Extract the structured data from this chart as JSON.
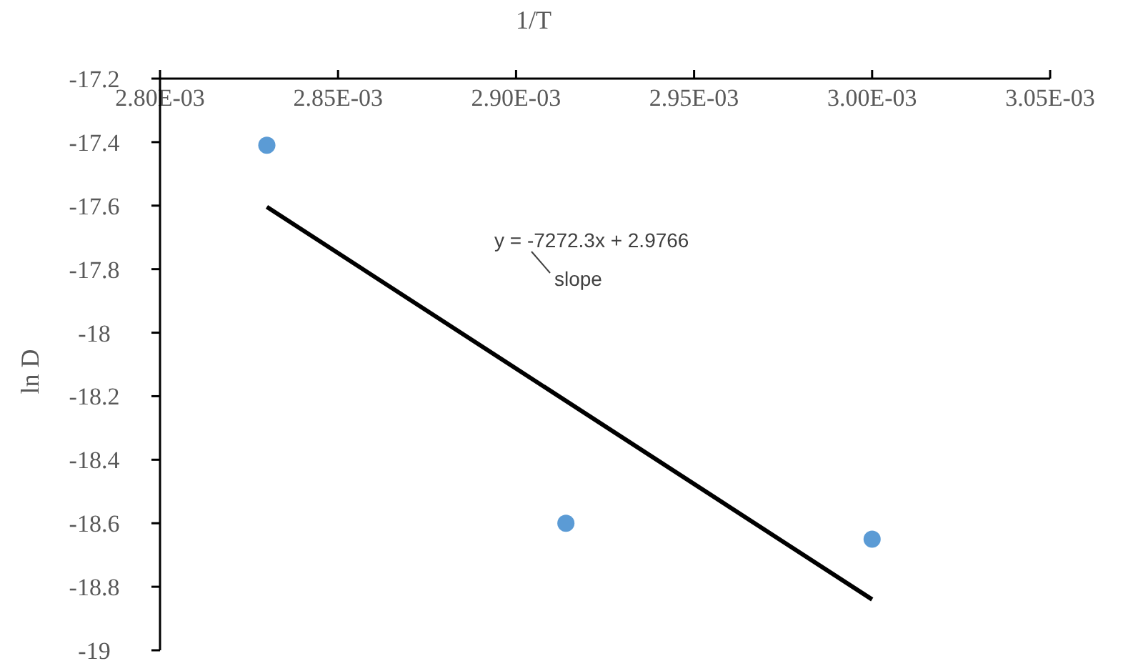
{
  "chart_data": {
    "type": "scatter",
    "xlabel": "1/T",
    "ylabel": "ln D",
    "xlim": [
      0.0028,
      0.00305
    ],
    "xticks": [
      {
        "value": 0.0028,
        "label": "2.80E-03"
      },
      {
        "value": 0.00285,
        "label": "2.85E-03"
      },
      {
        "value": 0.0029,
        "label": "2.90E-03"
      },
      {
        "value": 0.00295,
        "label": "2.95E-03"
      },
      {
        "value": 0.003,
        "label": "3.00E-03"
      },
      {
        "value": 0.00305,
        "label": "3.05E-03"
      }
    ],
    "ylim": [
      -19,
      -17.2
    ],
    "yticks": [
      -19,
      {
        "value": -18.8,
        "label": "-18.8"
      },
      {
        "value": -18.6,
        "label": "-18.6"
      },
      {
        "value": -18.4,
        "label": "-18.4"
      },
      {
        "value": -18.2,
        "label": "-18.2"
      },
      -18,
      {
        "value": -17.8,
        "label": "-17.8"
      },
      {
        "value": -17.6,
        "label": "-17.6"
      },
      {
        "value": -17.4,
        "label": "-17.4"
      },
      {
        "value": -17.2,
        "label": "-17.2"
      }
    ],
    "grid": false,
    "marker": "circle",
    "series": [
      {
        "color": "#5b9bd5",
        "x": [
          0.00283,
          0.002914,
          0.003
        ],
        "values": [
          -17.41,
          -18.6,
          -18.65
        ]
      },
      {
        "type": "line",
        "color": "#000000",
        "marker": "none",
        "x": [
          0.00283,
          0.003
        ],
        "values": [
          -17.604,
          -18.84
        ]
      }
    ],
    "annotations": [
      "y = -7272.3x + 2.9766",
      "slope"
    ]
  }
}
